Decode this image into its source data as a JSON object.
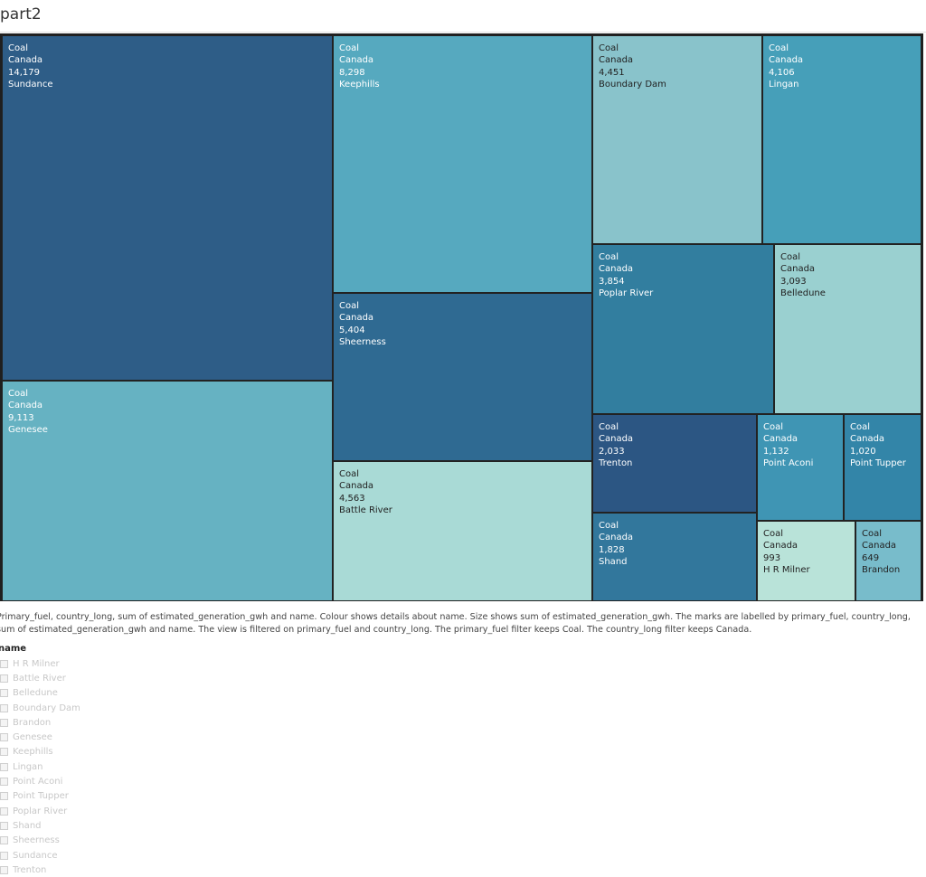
{
  "title": "part2",
  "chart_data": {
    "type": "treemap",
    "title": "part2",
    "nodes": [
      {
        "primary_fuel": "Coal",
        "country_long": "Canada",
        "value": "14,179",
        "name": "Sundance",
        "color": "#2e5d87"
      },
      {
        "primary_fuel": "Coal",
        "country_long": "Canada",
        "value": "9,113",
        "name": "Genesee",
        "color": "#66b2c2"
      },
      {
        "primary_fuel": "Coal",
        "country_long": "Canada",
        "value": "8,298",
        "name": "Keephills",
        "color": "#56a9bf"
      },
      {
        "primary_fuel": "Coal",
        "country_long": "Canada",
        "value": "5,404",
        "name": "Sheerness",
        "color": "#2f6a92"
      },
      {
        "primary_fuel": "Coal",
        "country_long": "Canada",
        "value": "4,563",
        "name": "Battle River",
        "color": "#a9dad6"
      },
      {
        "primary_fuel": "Coal",
        "country_long": "Canada",
        "value": "4,451",
        "name": "Boundary Dam",
        "color": "#89c3cb"
      },
      {
        "primary_fuel": "Coal",
        "country_long": "Canada",
        "value": "4,106",
        "name": "Lingan",
        "color": "#469fb9"
      },
      {
        "primary_fuel": "Coal",
        "country_long": "Canada",
        "value": "3,854",
        "name": "Poplar River",
        "color": "#327e9f"
      },
      {
        "primary_fuel": "Coal",
        "country_long": "Canada",
        "value": "3,093",
        "name": "Belledune",
        "color": "#9ad0d0"
      },
      {
        "primary_fuel": "Coal",
        "country_long": "Canada",
        "value": "2,033",
        "name": "Trenton",
        "color": "#2c5683"
      },
      {
        "primary_fuel": "Coal",
        "country_long": "Canada",
        "value": "1,828",
        "name": "Shand",
        "color": "#32779c"
      },
      {
        "primary_fuel": "Coal",
        "country_long": "Canada",
        "value": "1,132",
        "name": "Point Aconi",
        "color": "#3f95b4"
      },
      {
        "primary_fuel": "Coal",
        "country_long": "Canada",
        "value": "1,020",
        "name": "Point Tupper",
        "color": "#3385a8"
      },
      {
        "primary_fuel": "Coal",
        "country_long": "Canada",
        "value": "993",
        "name": "H R Milner",
        "color": "#b9e3d9"
      },
      {
        "primary_fuel": "Coal",
        "country_long": "Canada",
        "value": "649",
        "name": "Brandon",
        "color": "#78bccb"
      }
    ]
  },
  "caption": "Primary_fuel, country_long, sum of estimated_generation_gwh and name.  Colour shows details about name.  Size shows sum of estimated_generation_gwh.  The marks are labelled by primary_fuel, country_long, sum of estimated_generation_gwh and name. The view is filtered on primary_fuel and country_long. The primary_fuel filter keeps Coal. The country_long filter keeps Canada.",
  "filter": {
    "title": "name",
    "items": [
      "H R Milner",
      "Battle River",
      "Belledune",
      "Boundary Dam",
      "Brandon",
      "Genesee",
      "Keephills",
      "Lingan",
      "Point Aconi",
      "Point Tupper",
      "Poplar River",
      "Shand",
      "Sheerness",
      "Sundance",
      "Trenton"
    ]
  }
}
